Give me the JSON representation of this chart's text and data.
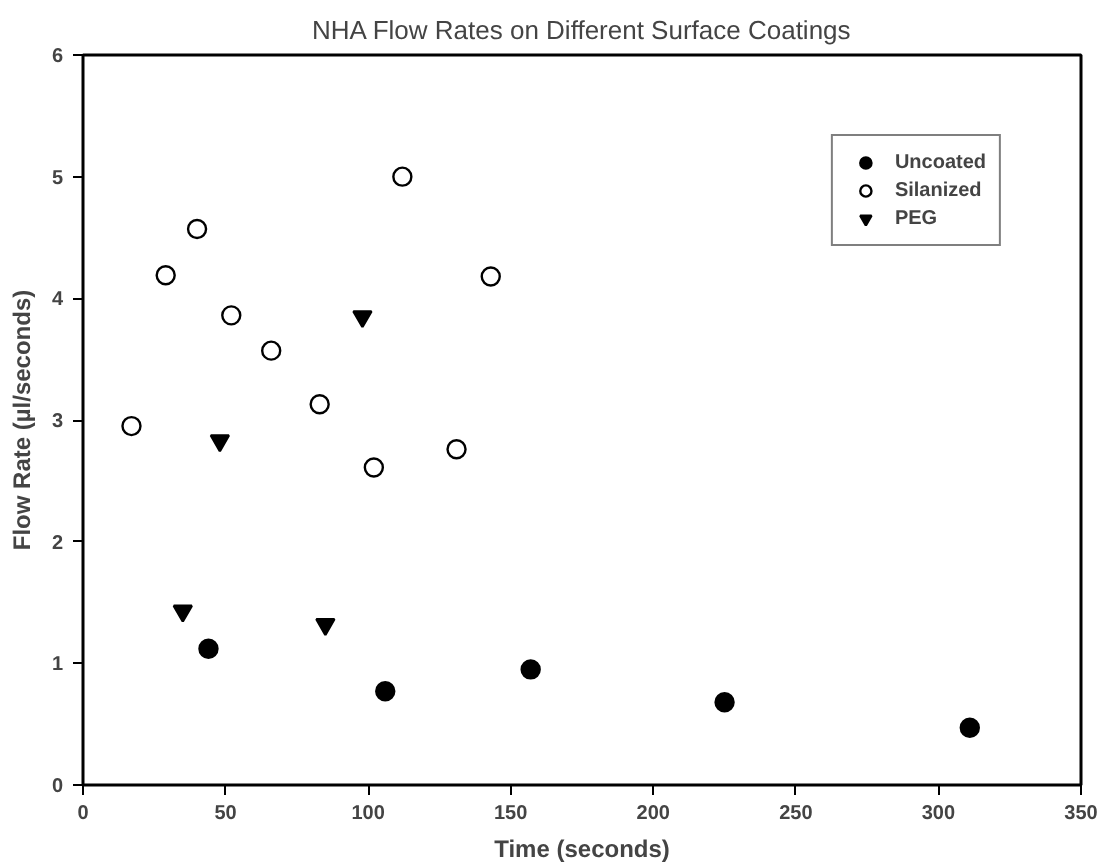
{
  "chart_data": {
    "type": "scatter",
    "title": "NHA Flow Rates on Different Surface Coatings",
    "xlabel": "Time (seconds)",
    "ylabel": "Flow Rate (µl/seconds)",
    "xlim": [
      0,
      350
    ],
    "ylim": [
      0,
      6
    ],
    "xticks": [
      0,
      50,
      100,
      150,
      200,
      250,
      300,
      350
    ],
    "yticks": [
      0,
      1,
      2,
      3,
      4,
      5,
      6
    ],
    "grid": false,
    "legend": "top right",
    "series": [
      {
        "name": "Uncoated",
        "color": "#000000",
        "marker": "circle",
        "x": [
          44,
          106,
          157,
          225,
          311
        ],
        "values": [
          1.12,
          0.77,
          0.95,
          0.68,
          0.47
        ]
      },
      {
        "name": "Silanized",
        "color": "#ffffff",
        "marker": "circle",
        "x": [
          17,
          29,
          40,
          52,
          66,
          83,
          102,
          112,
          131,
          143
        ],
        "values": [
          2.95,
          4.19,
          4.57,
          3.86,
          3.57,
          3.13,
          2.61,
          5.0,
          2.76,
          4.18
        ]
      },
      {
        "name": "PEG",
        "color": "#000000",
        "marker": "triangle",
        "x": [
          35,
          48,
          85,
          98
        ],
        "values": [
          1.43,
          2.83,
          1.32,
          3.85
        ]
      }
    ]
  }
}
